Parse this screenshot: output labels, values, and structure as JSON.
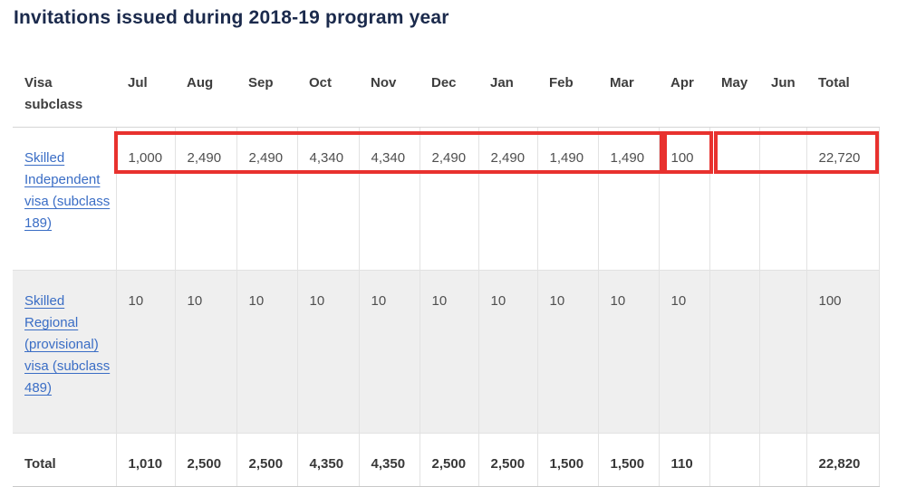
{
  "title": "Invitations issued during 2018-19 program year",
  "colors": {
    "title_navy": "#1b2a4c",
    "link_blue": "#3a6dc5",
    "highlight_red": "#e8312e",
    "alt_row_bg": "#efefef"
  },
  "table": {
    "columns": [
      "Visa subclass",
      "Jul",
      "Aug",
      "Sep",
      "Oct",
      "Nov",
      "Dec",
      "Jan",
      "Feb",
      "Mar",
      "Apr",
      "May",
      "Jun",
      "Total"
    ],
    "rows": [
      {
        "label": "Skilled Independent visa (subclass 189)",
        "is_link": true,
        "values": [
          "1,000",
          "2,490",
          "2,490",
          "4,340",
          "4,340",
          "2,490",
          "2,490",
          "1,490",
          "1,490",
          "100",
          "",
          "",
          "22,720"
        ]
      },
      {
        "label": "Skilled Regional (provisional) visa (subclass 489)",
        "is_link": true,
        "values": [
          "10",
          "10",
          "10",
          "10",
          "10",
          "10",
          "10",
          "10",
          "10",
          "10",
          "",
          "",
          "100"
        ]
      },
      {
        "label": "Total",
        "is_link": false,
        "values": [
          "1,010",
          "2,500",
          "2,500",
          "4,350",
          "4,350",
          "2,500",
          "2,500",
          "1,500",
          "1,500",
          "110",
          "",
          "",
          "22,820"
        ]
      }
    ]
  }
}
